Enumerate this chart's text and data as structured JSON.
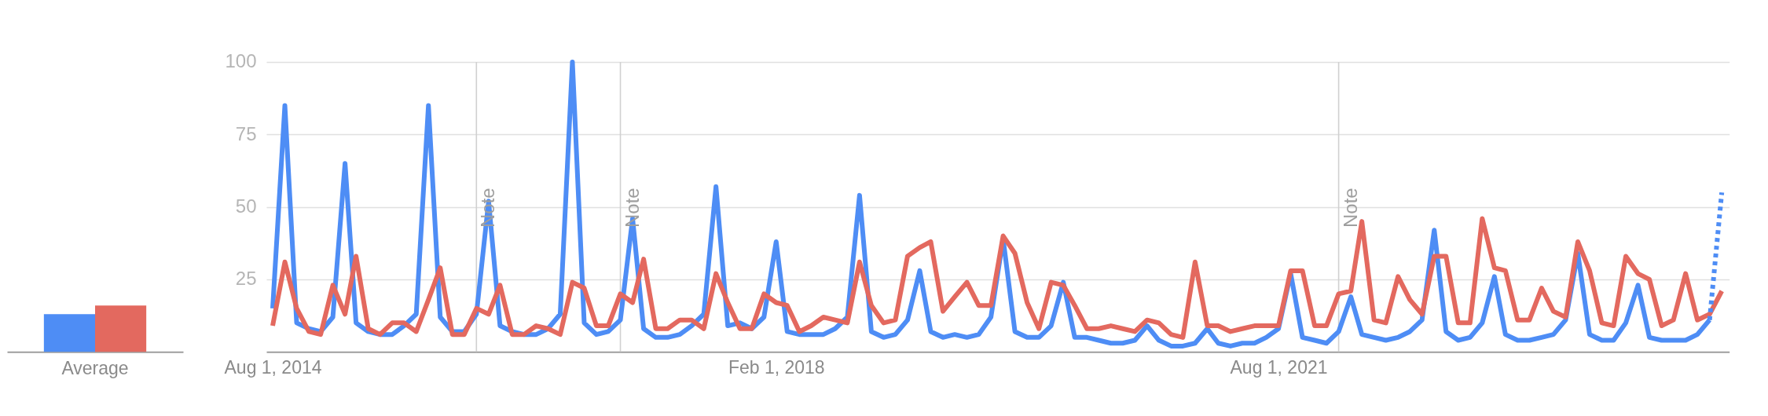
{
  "chart_data": [
    {
      "type": "bar",
      "categories": [
        "Average"
      ],
      "series": [
        {
          "color": "#4e8df5",
          "values": [
            13
          ]
        },
        {
          "color": "#e3695f",
          "values": [
            16
          ]
        }
      ],
      "ylim": [
        0,
        100
      ],
      "tick_labels": "x"
    },
    {
      "type": "line",
      "x": [
        "2014-08",
        "2014-09",
        "2014-10",
        "2014-11",
        "2014-12",
        "2015-01",
        "2015-02",
        "2015-03",
        "2015-04",
        "2015-05",
        "2015-06",
        "2015-07",
        "2015-08",
        "2015-09",
        "2015-10",
        "2015-11",
        "2015-12",
        "2016-01",
        "2016-02",
        "2016-03",
        "2016-04",
        "2016-05",
        "2016-06",
        "2016-07",
        "2016-08",
        "2016-09",
        "2016-10",
        "2016-11",
        "2016-12",
        "2017-01",
        "2017-02",
        "2017-03",
        "2017-04",
        "2017-05",
        "2017-06",
        "2017-07",
        "2017-08",
        "2017-09",
        "2017-10",
        "2017-11",
        "2017-12",
        "2018-01",
        "2018-02",
        "2018-03",
        "2018-04",
        "2018-05",
        "2018-06",
        "2018-07",
        "2018-08",
        "2018-09",
        "2018-10",
        "2018-11",
        "2018-12",
        "2019-01",
        "2019-02",
        "2019-03",
        "2019-04",
        "2019-05",
        "2019-06",
        "2019-07",
        "2019-08",
        "2019-09",
        "2019-10",
        "2019-11",
        "2019-12",
        "2020-01",
        "2020-02",
        "2020-03",
        "2020-04",
        "2020-05",
        "2020-06",
        "2020-07",
        "2020-08",
        "2020-09",
        "2020-10",
        "2020-11",
        "2020-12",
        "2021-01",
        "2021-02",
        "2021-03",
        "2021-04",
        "2021-05",
        "2021-06",
        "2021-07",
        "2021-08",
        "2021-09",
        "2021-10",
        "2021-11",
        "2021-12",
        "2022-01",
        "2022-02",
        "2022-03",
        "2022-04",
        "2022-05",
        "2022-06",
        "2022-07",
        "2022-08",
        "2022-09",
        "2022-10",
        "2022-11",
        "2022-12",
        "2023-01",
        "2023-02",
        "2023-03",
        "2023-04",
        "2023-05",
        "2023-06",
        "2023-07",
        "2023-08",
        "2023-09",
        "2023-10",
        "2023-11",
        "2023-12",
        "2024-01",
        "2024-02",
        "2024-03",
        "2024-04",
        "2024-05",
        "2024-06",
        "2024-07",
        "2024-08",
        "2024-09"
      ],
      "series": [
        {
          "color": "#4e8df5",
          "values": [
            15,
            85,
            10,
            8,
            7,
            12,
            65,
            10,
            7,
            6,
            6,
            9,
            13,
            85,
            12,
            7,
            7,
            13,
            52,
            9,
            7,
            6,
            6,
            8,
            13,
            100,
            10,
            6,
            7,
            11,
            46,
            8,
            5,
            5,
            6,
            9,
            13,
            57,
            9,
            10,
            8,
            12,
            38,
            7,
            6,
            6,
            6,
            8,
            12,
            54,
            7,
            5,
            6,
            11,
            28,
            7,
            5,
            6,
            5,
            6,
            12,
            39,
            7,
            5,
            5,
            9,
            24,
            5,
            5,
            4,
            3,
            3,
            4,
            9,
            4,
            2,
            2,
            3,
            8,
            3,
            2,
            3,
            3,
            5,
            8,
            27,
            5,
            4,
            3,
            7,
            19,
            6,
            5,
            4,
            5,
            7,
            11,
            42,
            7,
            4,
            5,
            10,
            26,
            6,
            4,
            4,
            5,
            6,
            11,
            34,
            6,
            4,
            4,
            10,
            23,
            5,
            4,
            4,
            4,
            6,
            11,
            null
          ]
        },
        {
          "color": "#e3695f",
          "values": [
            9,
            31,
            15,
            7,
            6,
            23,
            13,
            33,
            8,
            6,
            10,
            10,
            7,
            18,
            29,
            6,
            6,
            15,
            13,
            23,
            6,
            6,
            9,
            8,
            6,
            24,
            22,
            9,
            9,
            20,
            17,
            32,
            8,
            8,
            11,
            11,
            8,
            27,
            17,
            8,
            8,
            20,
            17,
            16,
            7,
            9,
            12,
            11,
            10,
            31,
            16,
            10,
            11,
            33,
            36,
            38,
            14,
            19,
            24,
            16,
            16,
            40,
            34,
            17,
            8,
            24,
            23,
            16,
            8,
            8,
            9,
            8,
            7,
            11,
            10,
            6,
            5,
            31,
            9,
            9,
            7,
            8,
            9,
            9,
            9,
            28,
            28,
            9,
            9,
            20,
            21,
            45,
            11,
            10,
            26,
            18,
            13,
            33,
            33,
            10,
            10,
            46,
            29,
            28,
            11,
            11,
            22,
            14,
            12,
            38,
            28,
            10,
            9,
            33,
            27,
            25,
            9,
            11,
            27,
            11,
            13,
            21
          ]
        },
        {
          "color": "#4e8df5",
          "line_style": "dotted",
          "x": [
            "2024-08",
            "2024-09"
          ],
          "values": [
            11,
            55
          ]
        }
      ],
      "xlim": [
        "2014-07-16",
        "2024-09-20"
      ],
      "xticks": [
        {
          "value": "2014-08-01",
          "label": "Aug 1, 2014"
        },
        {
          "value": "2018-02-01",
          "label": "Feb 1, 2018"
        },
        {
          "value": "2021-08-01",
          "label": "Aug 1, 2021"
        }
      ],
      "ylim": [
        0,
        100
      ],
      "yticks": [
        25,
        50,
        75,
        100
      ],
      "grid": "y",
      "ref_lines": [
        {
          "axis": "x",
          "value": "2016-01-01",
          "label": "Note",
          "color": "#d0d0d0"
        },
        {
          "axis": "x",
          "value": "2017-01-01",
          "label": "Note",
          "color": "#d0d0d0"
        },
        {
          "axis": "x",
          "value": "2022-01-01",
          "label": "Note",
          "color": "#d0d0d0"
        }
      ]
    }
  ]
}
